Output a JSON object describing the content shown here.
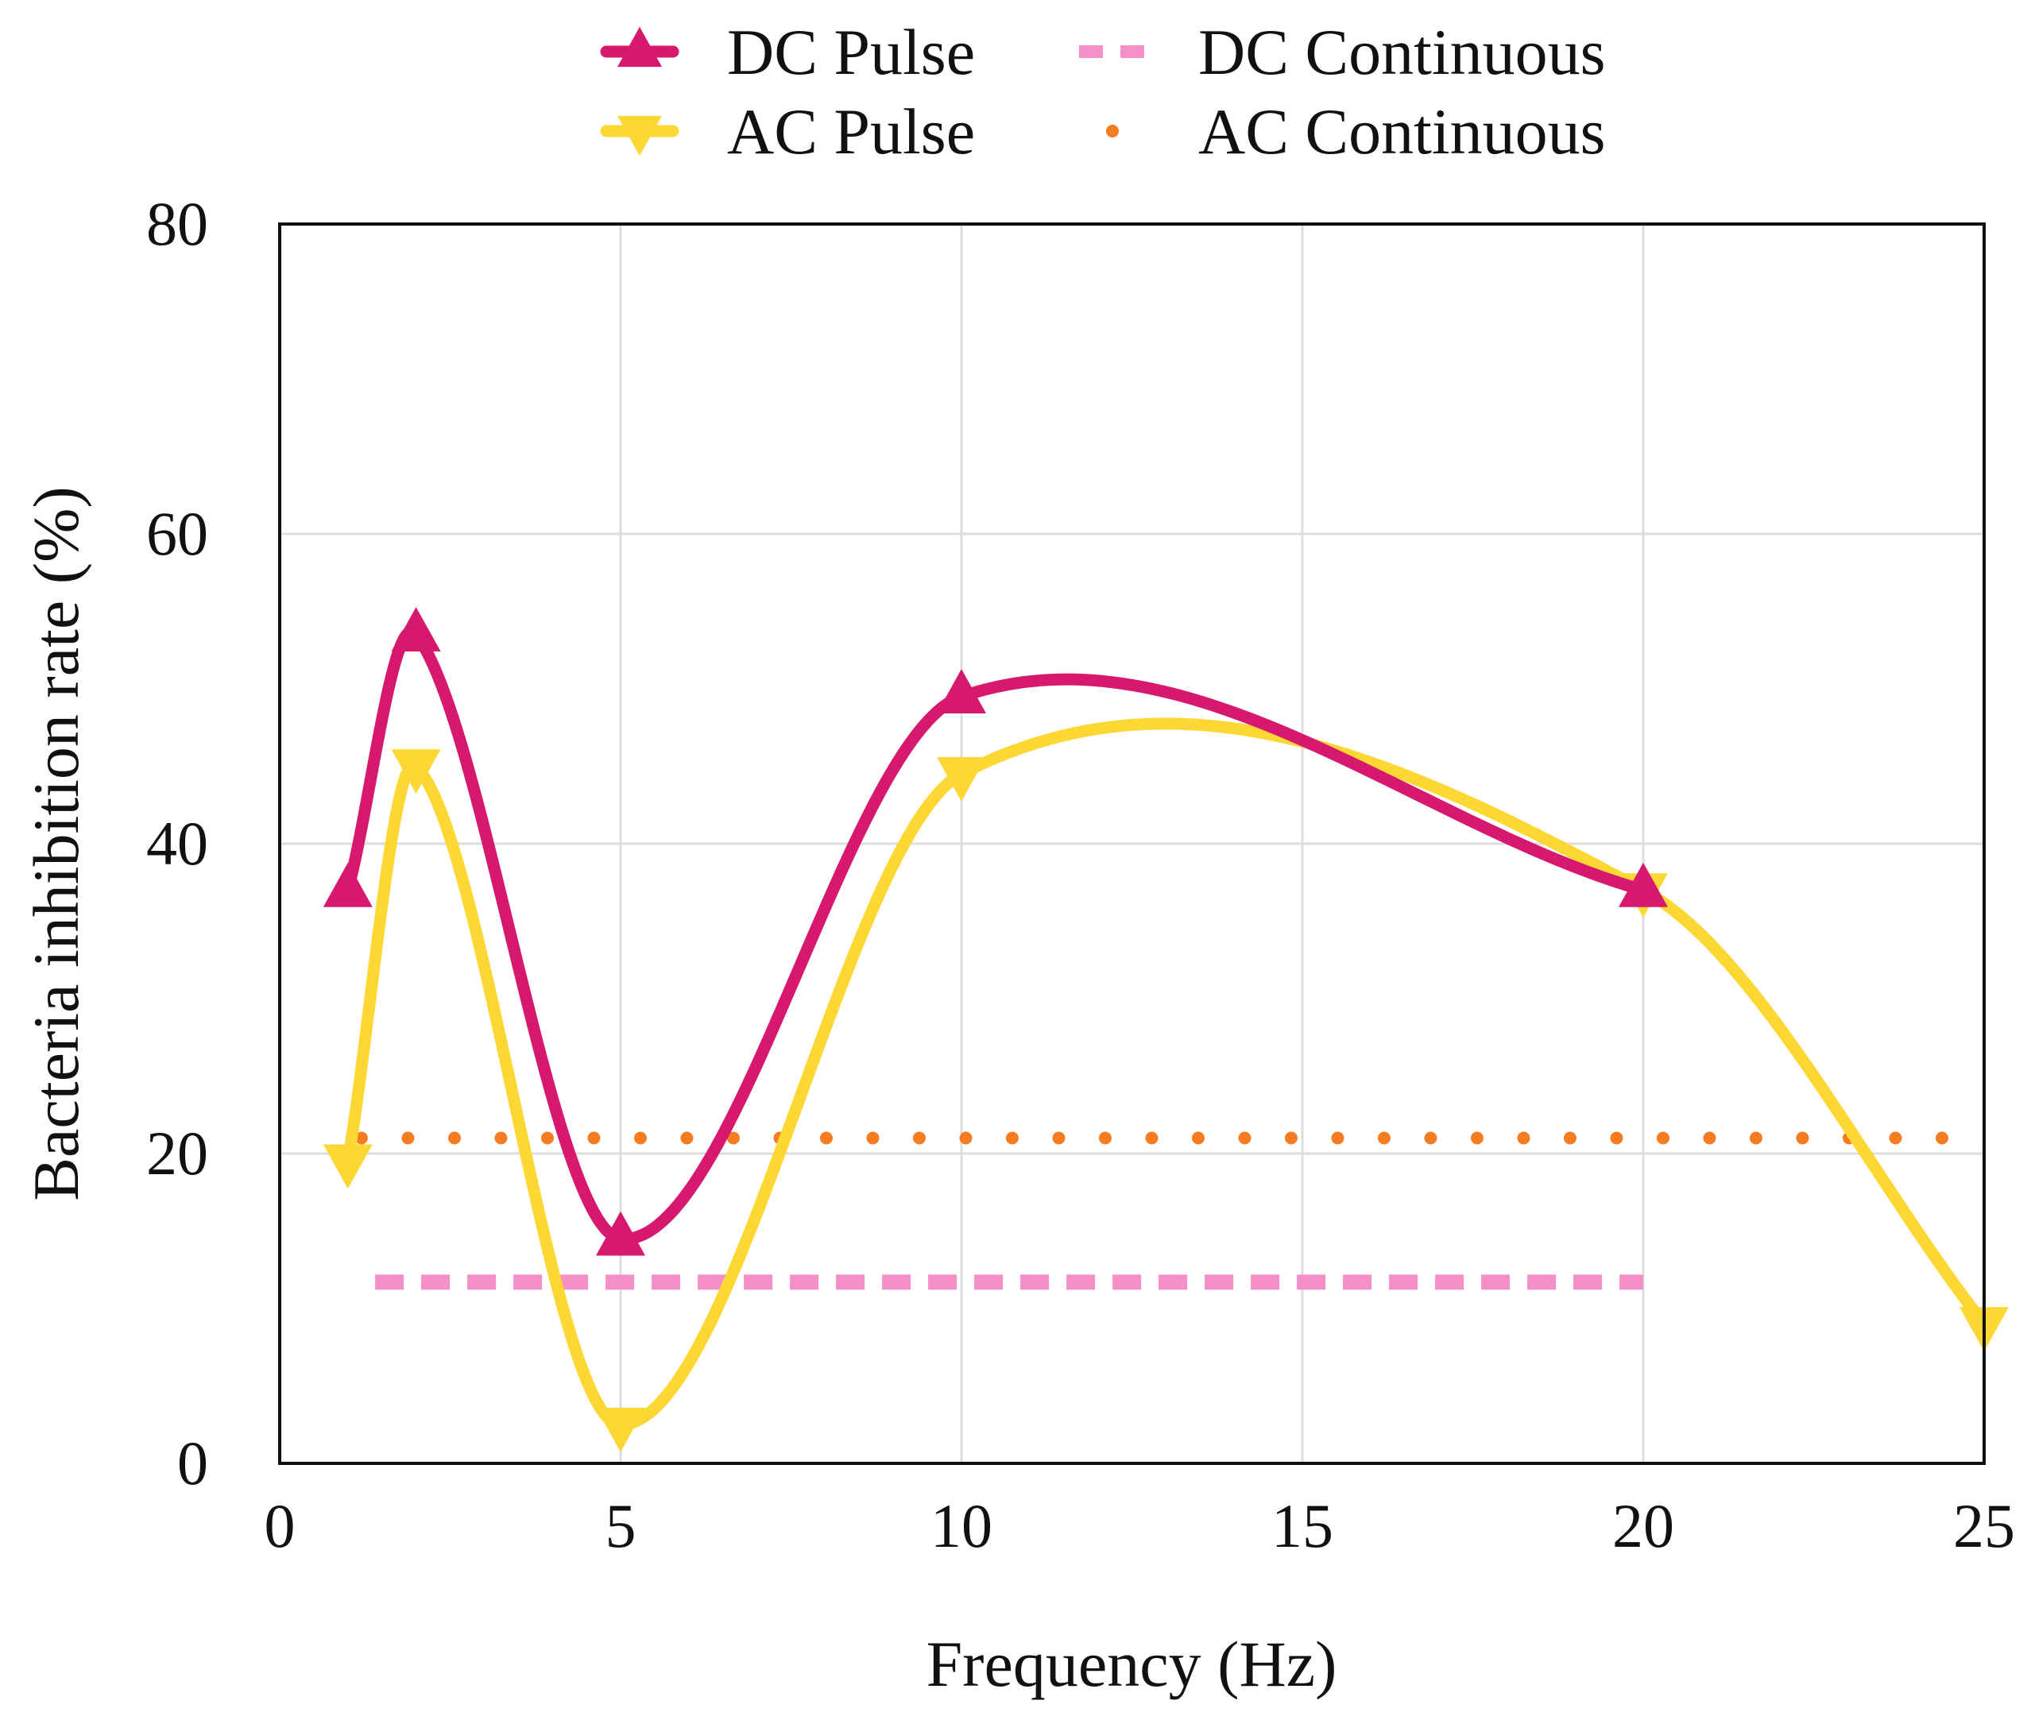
{
  "chart_data": {
    "type": "line",
    "title": "",
    "xlabel": "Frequency (Hz)",
    "ylabel": "Bacteria inhibition rate (%)",
    "xlim": [
      0,
      25
    ],
    "ylim": [
      0,
      80
    ],
    "xticks": [
      0,
      5,
      10,
      15,
      20,
      25
    ],
    "yticks": [
      0,
      20,
      40,
      60,
      80
    ],
    "grid": true,
    "legend_position": "top",
    "series": [
      {
        "name": "DC Pulse",
        "style": "solid-triangle-up",
        "color": "#d6186f",
        "x": [
          1,
          2,
          5,
          10,
          20
        ],
        "y": [
          37,
          53.5,
          14.5,
          49.5,
          37
        ]
      },
      {
        "name": "AC Pulse",
        "style": "solid-triangle-down",
        "color": "#fdd835",
        "x": [
          1,
          2,
          5,
          10,
          20,
          25
        ],
        "y": [
          19.5,
          45,
          2.5,
          44.5,
          37,
          9
        ]
      },
      {
        "name": "DC Continuous",
        "style": "dashed",
        "color": "#f48fc8",
        "x": [
          1.4,
          20
        ],
        "y": [
          11.7,
          11.7
        ]
      },
      {
        "name": "AC Continuous",
        "style": "dotted",
        "color": "#f57c20",
        "x": [
          1.2,
          24.6
        ],
        "y": [
          21,
          21
        ]
      }
    ]
  }
}
